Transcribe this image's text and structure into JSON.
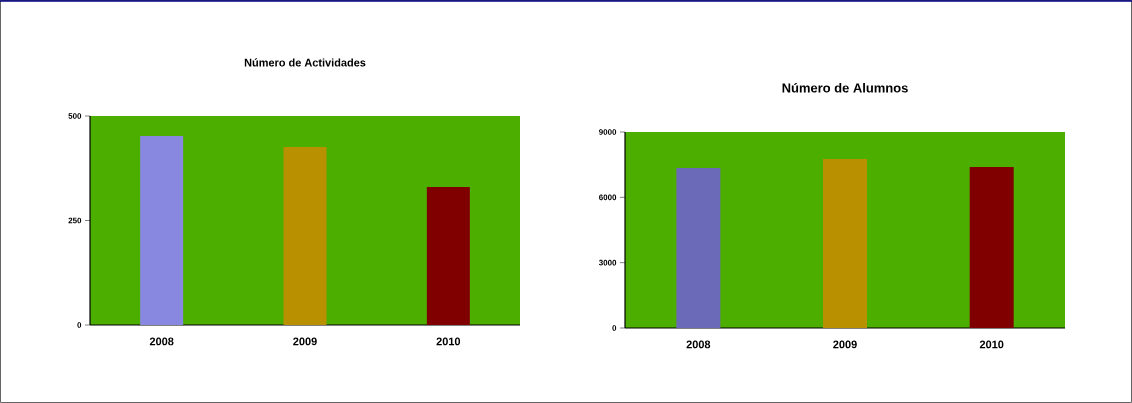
{
  "chart_data": [
    {
      "type": "bar",
      "title": "Número de Actividades",
      "categories": [
        "2008",
        "2009",
        "2010"
      ],
      "values": [
        452,
        426,
        330
      ],
      "colors": [
        "#8888e0",
        "#b89000",
        "#800000"
      ],
      "ylim": [
        0,
        500
      ],
      "yticks": [
        0,
        250,
        500
      ]
    },
    {
      "type": "bar",
      "title": "Número de Alumnos",
      "categories": [
        "2008",
        "2009",
        "2010"
      ],
      "values": [
        7350,
        7760,
        7390
      ],
      "colors": [
        "#6a6ab8",
        "#b89000",
        "#800000"
      ],
      "ylim": [
        0,
        9000
      ],
      "yticks": [
        0,
        3000,
        6000,
        9000
      ]
    }
  ]
}
